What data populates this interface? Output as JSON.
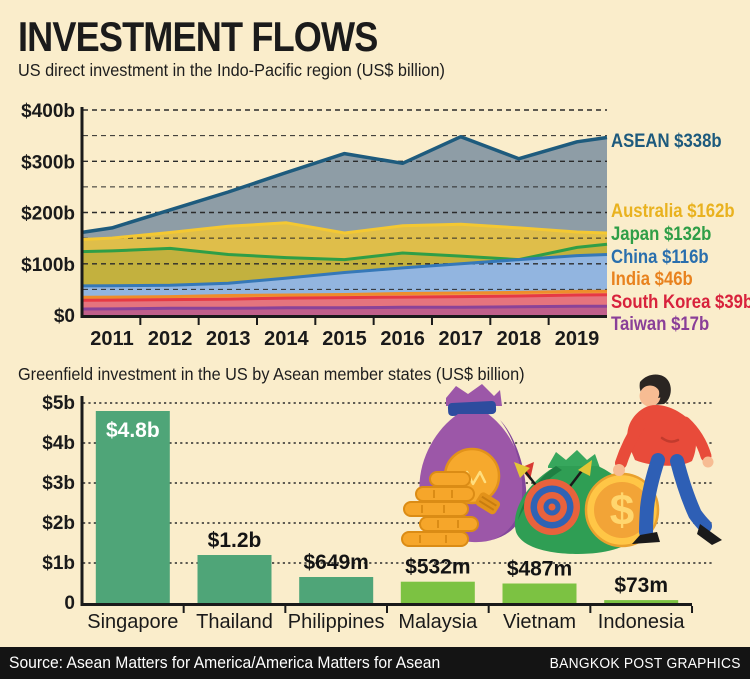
{
  "page": {
    "background": "#FAEDCB"
  },
  "header": {
    "title": "INVESTMENT FLOWS"
  },
  "chart_data": [
    {
      "type": "area",
      "title": "US direct investment in the Indo-Pacific region (US$ billion)",
      "x": [
        2011,
        2012,
        2013,
        2014,
        2015,
        2016,
        2017,
        2018,
        2019
      ],
      "ylim": [
        0,
        400
      ],
      "grid": "dashed, every 50b",
      "legend_position": "right",
      "yticks": [
        {
          "value": 400,
          "label": "$400b"
        },
        {
          "value": 300,
          "label": "$300b"
        },
        {
          "value": 200,
          "label": "$200b"
        },
        {
          "value": 100,
          "label": "$100b"
        },
        {
          "value": 0,
          "label": "$0"
        }
      ],
      "series": [
        {
          "name": "ASEAN",
          "legend": "ASEAN $338b",
          "values": [
            170,
            205,
            240,
            278,
            315,
            296,
            348,
            305,
            338
          ],
          "line_color": "#1E5B7D",
          "fill_color": "#8E9DA6",
          "legend_color": "#1D5A7D"
        },
        {
          "name": "Australia",
          "legend": "Australia $162b",
          "values": [
            150,
            161,
            173,
            180,
            160,
            174,
            177,
            170,
            162
          ],
          "line_color": "#F4C832",
          "fill_color": "#DFBE4A",
          "legend_color": "#E9B21F"
        },
        {
          "name": "Japan",
          "legend": "Japan $132b",
          "values": [
            125,
            130,
            118,
            112,
            108,
            121,
            115,
            108,
            132
          ],
          "line_color": "#2F9E47",
          "fill_color": "#C3B13E",
          "legend_color": "#2F9E47"
        },
        {
          "name": "China",
          "legend": "China $116b",
          "values": [
            57,
            58,
            62,
            72,
            83,
            92,
            100,
            108,
            116
          ],
          "line_color": "#3578B8",
          "fill_color": "#92B5E0",
          "legend_color": "#2A6FAD"
        },
        {
          "name": "India",
          "legend": "India $46b",
          "values": [
            35,
            36,
            38,
            39,
            40,
            42,
            43,
            44,
            46
          ],
          "line_color": "#EE8D2B",
          "fill_color": "#F2A159",
          "legend_color": "#E8821E"
        },
        {
          "name": "South Korea",
          "legend": "South Korea $39b",
          "values": [
            29,
            30,
            31,
            33,
            34,
            35,
            36,
            37,
            39
          ],
          "line_color": "#E63944",
          "fill_color": "#E5747E",
          "legend_color": "#D8223C"
        },
        {
          "name": "Taiwan",
          "legend": "Taiwan $17b",
          "values": [
            12,
            13,
            13,
            14,
            14,
            15,
            15,
            16,
            17
          ],
          "line_color": "#8A4398",
          "fill_color": "#C05F8B",
          "legend_color": "#8A3F98"
        }
      ]
    },
    {
      "type": "bar",
      "title": "Greenfield investment in the US by Asean member states (US$ billion)",
      "categories": [
        "Singapore",
        "Thailand",
        "Philippines",
        "Malaysia",
        "Vietnam",
        "Indonesia"
      ],
      "values": [
        4.8,
        1.2,
        0.649,
        0.532,
        0.487,
        0.073
      ],
      "value_labels": [
        "$4.8b",
        "$1.2b",
        "$649m",
        "$532m",
        "$487m",
        "$73m"
      ],
      "bar_colors": [
        "#4FA578",
        "#4FA578",
        "#4FA578",
        "#7CC242",
        "#7CC242",
        "#7CC242"
      ],
      "ylim": [
        0,
        5
      ],
      "grid": "dotted, every 1b",
      "yticks": [
        {
          "value": 5,
          "label": "$5b"
        },
        {
          "value": 4,
          "label": "$4b"
        },
        {
          "value": 3,
          "label": "$3b"
        },
        {
          "value": 2,
          "label": "$2b"
        },
        {
          "value": 1,
          "label": "$1b"
        },
        {
          "value": 0,
          "label": "0"
        }
      ]
    }
  ],
  "footer": {
    "source": "Source: Asean Matters for America/America Matters for Asean",
    "credit": "BANGKOK POST GRAPHICS"
  }
}
